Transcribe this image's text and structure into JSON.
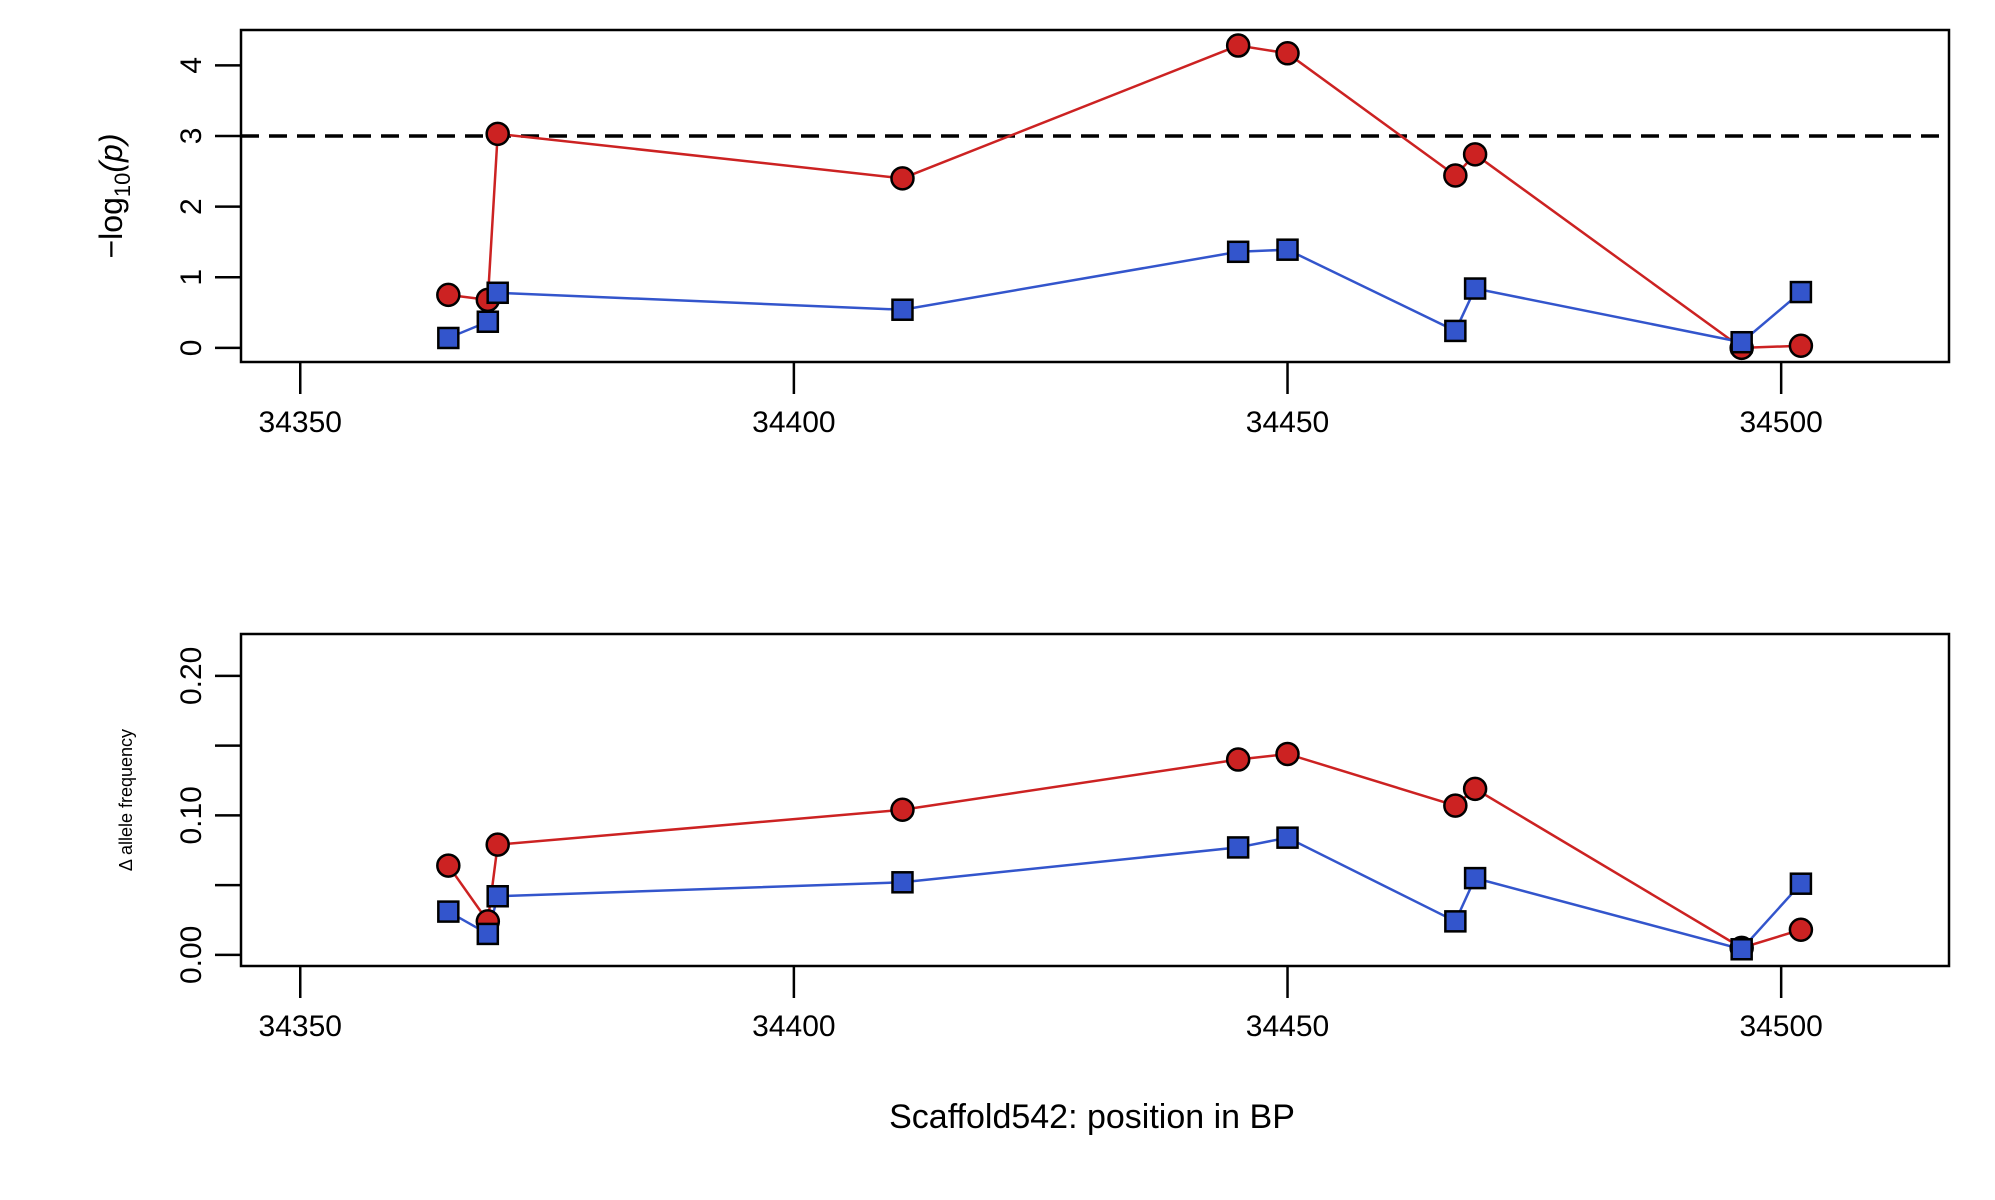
{
  "colors": {
    "red_series": "#cc2222",
    "blue_series": "#3355cc",
    "axis": "#000000",
    "threshold_line": "#000000"
  },
  "chart_data": [
    {
      "type": "line",
      "panel": "top",
      "ylabel_main": "−log",
      "ylabel_sub": "10",
      "ylabel_paren": "(p)",
      "xlabel": "",
      "xlim": [
        34344,
        34517
      ],
      "ylim": [
        -0.2,
        4.5
      ],
      "xticks": [
        "34350",
        "34400",
        "34450",
        "34500"
      ],
      "yticks": [
        "0",
        "1",
        "2",
        "3",
        "4"
      ],
      "threshold": 3,
      "grid": false,
      "series": [
        {
          "marker": "circle",
          "x": [
            34365,
            34369,
            34370,
            34411,
            34445,
            34450,
            34467,
            34469,
            34496,
            34502
          ],
          "y": [
            0.75,
            0.68,
            3.03,
            2.4,
            4.28,
            4.17,
            2.44,
            2.74,
            0.0,
            0.03
          ]
        },
        {
          "marker": "square",
          "x": [
            34365,
            34369,
            34370,
            34411,
            34445,
            34450,
            34467,
            34469,
            34496,
            34502
          ],
          "y": [
            0.14,
            0.37,
            0.78,
            0.54,
            1.36,
            1.39,
            0.24,
            0.84,
            0.08,
            0.79
          ]
        }
      ]
    },
    {
      "type": "line",
      "panel": "bottom",
      "ylabel": "Δ allele frequency",
      "xlabel": "Scaffold542: position in BP",
      "xlim": [
        34344,
        34517
      ],
      "ylim": [
        -0.008,
        0.23
      ],
      "xticks": [
        "34350",
        "34400",
        "34450",
        "34500"
      ],
      "yticks": [
        "0.00",
        "0.10",
        "0.20"
      ],
      "minor_ytick_values": [
        0.05,
        0.15
      ],
      "grid": false,
      "series": [
        {
          "marker": "circle",
          "x": [
            34365,
            34369,
            34370,
            34411,
            34445,
            34450,
            34467,
            34469,
            34496,
            34502
          ],
          "y": [
            0.064,
            0.024,
            0.079,
            0.104,
            0.14,
            0.144,
            0.107,
            0.119,
            0.005,
            0.018
          ]
        },
        {
          "marker": "square",
          "x": [
            34365,
            34369,
            34370,
            34411,
            34445,
            34450,
            34467,
            34469,
            34496,
            34502
          ],
          "y": [
            0.031,
            0.015,
            0.042,
            0.052,
            0.077,
            0.084,
            0.024,
            0.055,
            0.004,
            0.051
          ]
        }
      ]
    }
  ]
}
